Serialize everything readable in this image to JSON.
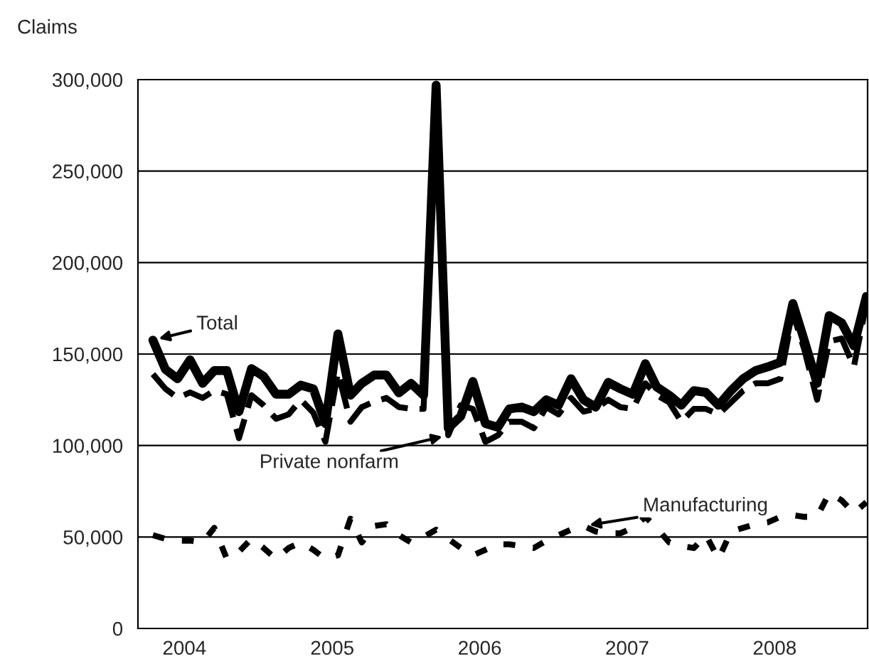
{
  "chart_data": {
    "type": "line",
    "ylabel": "Claims",
    "x": [
      "2003-10-15",
      "2003-11-15",
      "2003-12-15",
      "2004-01-15",
      "2004-02-15",
      "2004-03-15",
      "2004-04-15",
      "2004-05-15",
      "2004-06-15",
      "2004-07-15",
      "2004-08-15",
      "2004-09-15",
      "2004-10-15",
      "2004-11-15",
      "2004-12-15",
      "2005-01-15",
      "2005-02-15",
      "2005-03-15",
      "2005-04-15",
      "2005-05-15",
      "2005-06-15",
      "2005-07-15",
      "2005-08-15",
      "2005-09-15",
      "2005-10-15",
      "2005-11-15",
      "2005-12-15",
      "2006-01-15",
      "2006-02-15",
      "2006-03-15",
      "2006-04-15",
      "2006-05-15",
      "2006-06-15",
      "2006-07-15",
      "2006-08-15",
      "2006-09-15",
      "2006-10-15",
      "2006-11-15",
      "2006-12-15",
      "2007-01-15",
      "2007-02-15",
      "2007-03-15",
      "2007-04-15",
      "2007-05-15",
      "2007-06-15",
      "2007-07-15",
      "2007-08-15",
      "2007-09-15",
      "2007-10-15",
      "2007-11-15",
      "2007-12-15",
      "2008-01-15",
      "2008-02-15",
      "2008-03-15",
      "2008-04-15",
      "2008-05-15",
      "2008-06-15",
      "2008-07-15",
      "2008-08-15"
    ],
    "series": [
      {
        "name": "Total",
        "color": "#000000",
        "line_style": "solid",
        "values": [
          157600,
          141600,
          136500,
          146800,
          134000,
          141000,
          141000,
          118500,
          142000,
          137800,
          128000,
          128000,
          133000,
          131000,
          112000,
          161000,
          127500,
          134000,
          138500,
          138500,
          128800,
          134000,
          127500,
          297000,
          109500,
          116000,
          135000,
          112000,
          110000,
          120000,
          121000,
          118500,
          125000,
          122000,
          136500,
          125000,
          121000,
          134500,
          131000,
          128000,
          144700,
          132000,
          127500,
          122000,
          130000,
          129000,
          122000,
          130000,
          136500,
          141000,
          143000,
          145500,
          177600,
          157000,
          134000,
          171000,
          167000,
          154500,
          181500
        ]
      },
      {
        "name": "Private nonfarm",
        "color": "#000000",
        "line_style": "dashed",
        "values": [
          139000,
          131000,
          126000,
          129000,
          126000,
          130000,
          128000,
          104000,
          127500,
          122000,
          114600,
          117000,
          125000,
          118000,
          102000,
          140000,
          113000,
          121000,
          124000,
          126000,
          121000,
          120000,
          120000,
          285000,
          105600,
          122000,
          120000,
          102000,
          105600,
          113000,
          113000,
          109500,
          121000,
          117000,
          126000,
          118500,
          120000,
          125000,
          121000,
          120000,
          134000,
          127500,
          123600,
          113000,
          120000,
          120000,
          117000,
          123600,
          130000,
          134000,
          134000,
          136500,
          172500,
          152000,
          125000,
          157000,
          158500,
          143000,
          177600
        ]
      },
      {
        "name": "Manufacturing",
        "color": "#000000",
        "line_style": "dotted",
        "values": [
          51000,
          49000,
          48000,
          48000,
          47000,
          55000,
          38000,
          42000,
          49000,
          44000,
          38000,
          44000,
          47000,
          43000,
          38000,
          40000,
          60000,
          47000,
          56000,
          57000,
          51000,
          47000,
          50000,
          54000,
          49000,
          44000,
          40000,
          43000,
          46000,
          46000,
          45000,
          44000,
          48000,
          51000,
          54000,
          56000,
          53000,
          52000,
          52000,
          55000,
          61000,
          55000,
          47000,
          45000,
          44000,
          51000,
          38000,
          53000,
          55000,
          57000,
          58000,
          61000,
          62000,
          61000,
          61000,
          74000,
          70000,
          63000,
          69000
        ]
      }
    ],
    "xlim": [
      "2003-09-08",
      "2008-08-18"
    ],
    "xticks": [
      {
        "value": "2004-01-01",
        "label": "2004"
      },
      {
        "value": "2005-01-01",
        "label": "2005"
      },
      {
        "value": "2006-01-01",
        "label": "2006"
      },
      {
        "value": "2007-01-01",
        "label": "2007"
      },
      {
        "value": "2008-01-01",
        "label": "2008"
      }
    ],
    "ylim": [
      0,
      300000
    ],
    "yticks": [
      0,
      {
        "value": 50000,
        "label": "50,000"
      },
      {
        "value": 100000,
        "label": "100,000"
      },
      {
        "value": 150000,
        "label": "150,000"
      },
      {
        "value": 200000,
        "label": "200,000"
      },
      {
        "value": 250000,
        "label": "250,000"
      },
      {
        "value": 300000,
        "label": "300,000"
      }
    ],
    "grid": "y"
  }
}
